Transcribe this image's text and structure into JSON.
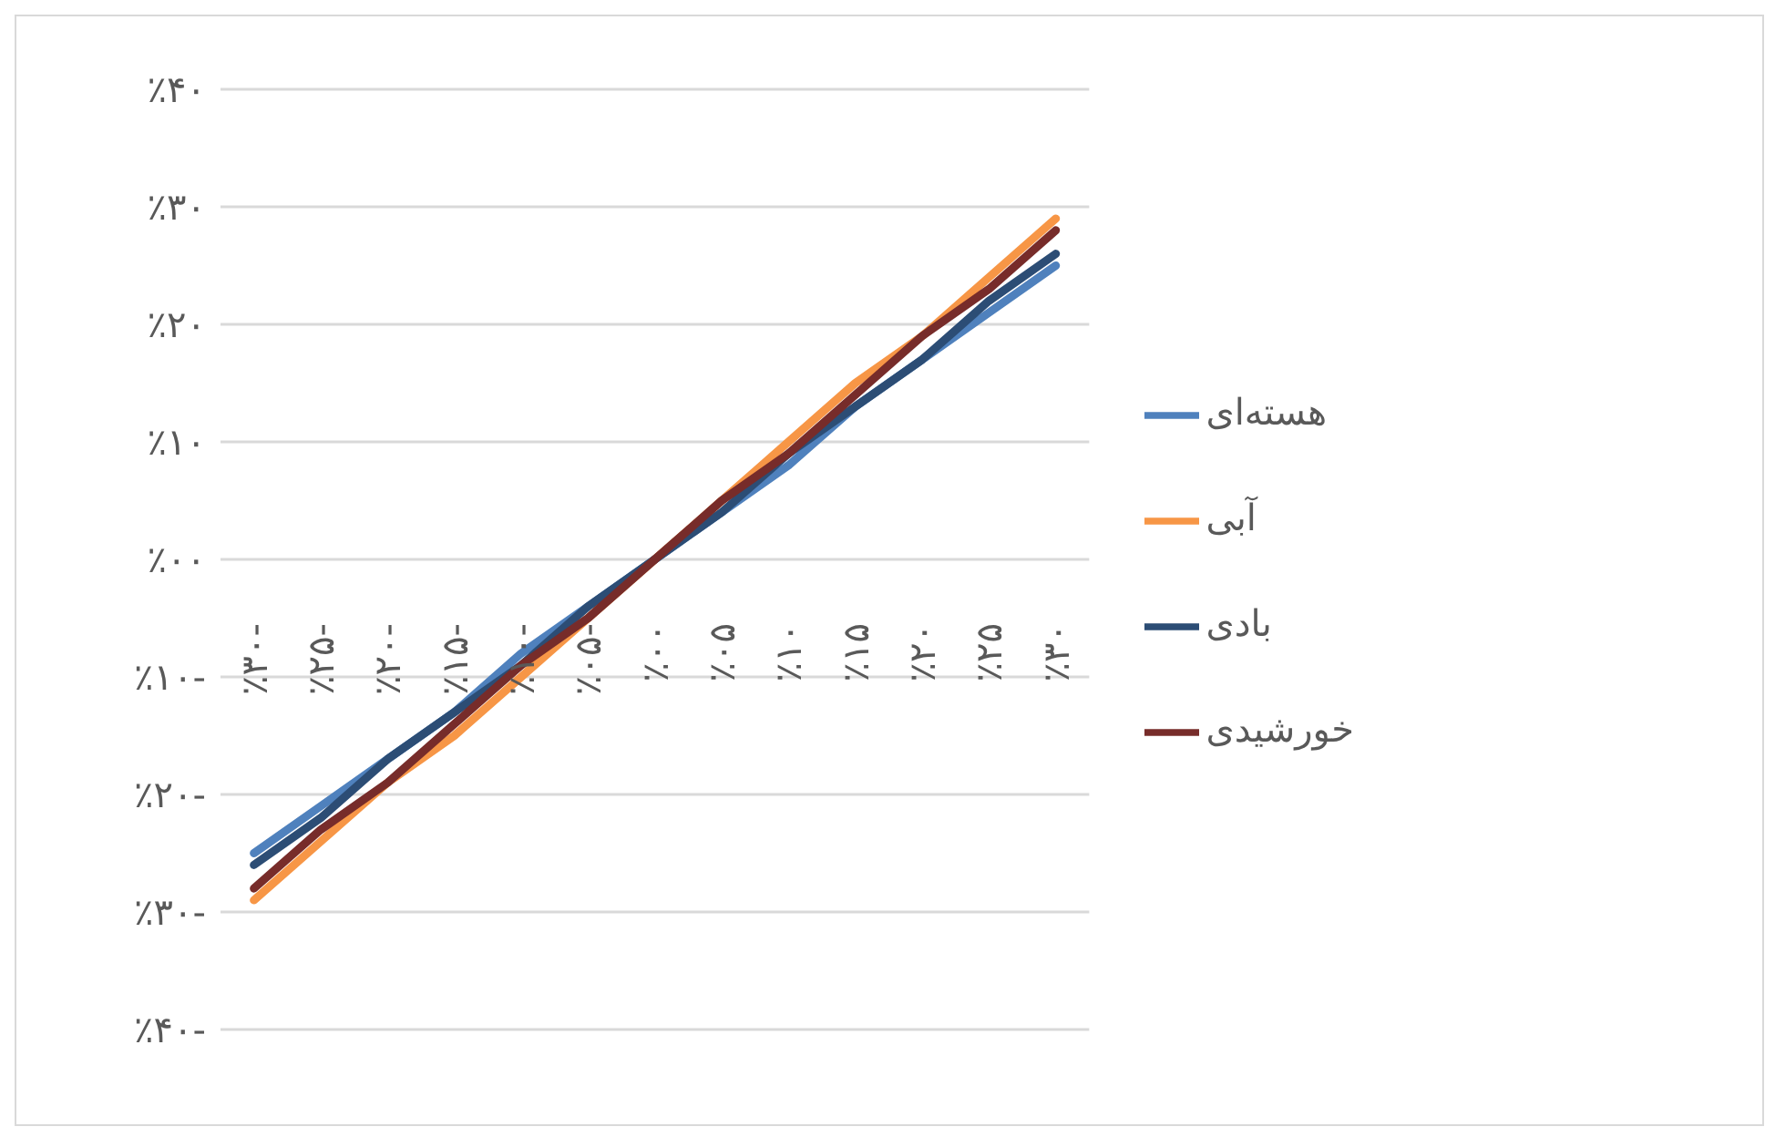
{
  "chart_data": {
    "type": "line",
    "categories": [
      "٪۳۰-",
      "٪۲۵-",
      "٪۲۰-",
      "٪۱۵-",
      "٪۱۰-",
      "٪۰۵-",
      "٪۰۰",
      "٪۰۵",
      "٪۱۰",
      "٪۱۵",
      "٪۲۰",
      "٪۲۵",
      "٪۳۰"
    ],
    "series": [
      {
        "name": "هسته‌ای",
        "color": "#4f81bd",
        "values": [
          -25,
          -21,
          -17,
          -13,
          -8,
          -4,
          0,
          4,
          8,
          13,
          17,
          21,
          25
        ]
      },
      {
        "name": "آبی",
        "color": "#f79646",
        "values": [
          -29,
          -24,
          -19,
          -15,
          -10,
          -5,
          0,
          5,
          10,
          15,
          19,
          24,
          29
        ]
      },
      {
        "name": "بادی",
        "color": "#2c4d75",
        "values": [
          -26,
          -22,
          -17,
          -13,
          -9,
          -4,
          0,
          4,
          9,
          13,
          17,
          22,
          26
        ]
      },
      {
        "name": "خورشیدی",
        "color": "#772c2a",
        "values": [
          -28,
          -23,
          -19,
          -14,
          -9,
          -5,
          0,
          5,
          9,
          14,
          19,
          23,
          28
        ]
      }
    ],
    "ylim": [
      -40,
      40
    ],
    "yticks": [
      {
        "value": -40,
        "label": "٪۴۰-"
      },
      {
        "value": -30,
        "label": "٪۳۰-"
      },
      {
        "value": -20,
        "label": "٪۲۰-"
      },
      {
        "value": -10,
        "label": "٪۱۰-"
      },
      {
        "value": 0,
        "label": "٪۰۰"
      },
      {
        "value": 10,
        "label": "٪۱۰"
      },
      {
        "value": 20,
        "label": "٪۲۰"
      },
      {
        "value": 30,
        "label": "٪۳۰"
      },
      {
        "value": 40,
        "label": "٪۴۰"
      }
    ],
    "grid": "y",
    "legend": "right",
    "marker": "none",
    "line_style": "solid"
  }
}
